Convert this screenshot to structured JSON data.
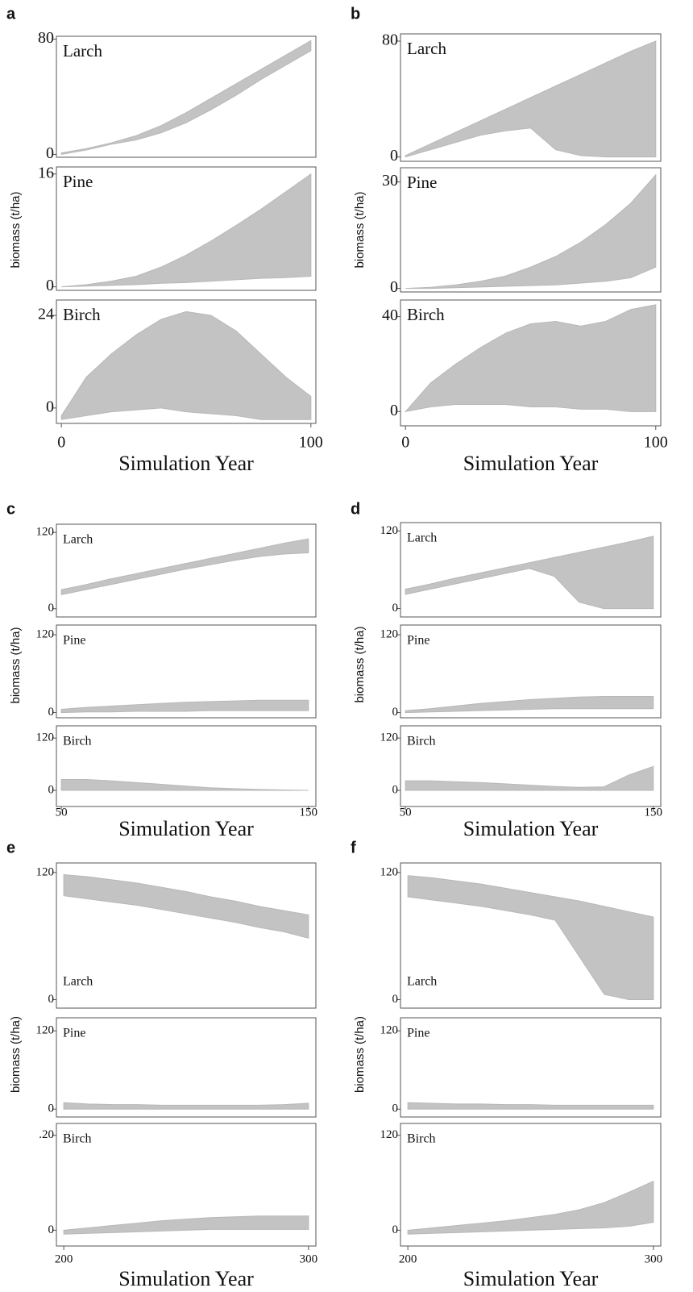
{
  "chart_data": [
    {
      "type": "band",
      "panel": "a",
      "x_label": "Simulation Year",
      "y_label": "biomass (t/ha)",
      "xlim": [
        -2,
        102
      ],
      "xticks": [
        0,
        100
      ],
      "x": [
        0,
        10,
        20,
        30,
        40,
        50,
        60,
        70,
        80,
        90,
        100
      ],
      "subplots": [
        {
          "name": "Larch",
          "ylim": [
            -2,
            82
          ],
          "yticks": [
            0,
            80
          ],
          "upper": [
            1,
            4,
            8,
            13,
            20,
            29,
            39,
            49,
            59,
            69,
            79
          ],
          "lower": [
            0,
            3,
            7,
            10,
            15,
            22,
            31,
            41,
            52,
            62,
            72
          ]
        },
        {
          "name": "Pine",
          "ylim": [
            -0.5,
            17
          ],
          "yticks": [
            0,
            16
          ],
          "upper": [
            0,
            0.3,
            0.8,
            1.5,
            2.8,
            4.5,
            6.5,
            8.7,
            11,
            13.5,
            16
          ],
          "lower": [
            0,
            0.1,
            0.2,
            0.3,
            0.5,
            0.6,
            0.8,
            1,
            1.2,
            1.3,
            1.5
          ]
        },
        {
          "name": "Birch",
          "ylim": [
            -4,
            28
          ],
          "yticks": [
            0,
            24
          ],
          "upper": [
            -2,
            8,
            14,
            19,
            23,
            25,
            24,
            20,
            14,
            8,
            3
          ],
          "lower": [
            -3,
            -2,
            -1,
            -0.5,
            0,
            -1,
            -1.5,
            -2,
            -3,
            -3,
            -3
          ]
        }
      ]
    },
    {
      "type": "band",
      "panel": "b",
      "x_label": "Simulation Year",
      "y_label": "biomass (t/ha)",
      "xlim": [
        -2,
        102
      ],
      "xticks": [
        0,
        100
      ],
      "x": [
        0,
        10,
        20,
        30,
        40,
        50,
        60,
        70,
        80,
        90,
        100
      ],
      "subplots": [
        {
          "name": "Larch",
          "ylim": [
            -3,
            85
          ],
          "yticks": [
            0,
            80
          ],
          "upper": [
            1,
            9,
            17,
            25,
            33,
            41,
            49,
            57,
            65,
            73,
            80
          ],
          "lower": [
            0,
            5,
            10,
            15,
            18,
            20,
            5,
            1,
            0,
            0,
            0
          ]
        },
        {
          "name": "Pine",
          "ylim": [
            -1,
            34
          ],
          "yticks": [
            0,
            30
          ],
          "upper": [
            0,
            0.3,
            1,
            2,
            3.5,
            6,
            9,
            13,
            18,
            24,
            32
          ],
          "lower": [
            0,
            0,
            0.2,
            0.4,
            0.6,
            0.8,
            1,
            1.5,
            2,
            3,
            6
          ]
        },
        {
          "name": "Birch",
          "ylim": [
            -6,
            47
          ],
          "yticks": [
            0,
            40
          ],
          "upper": [
            0,
            12,
            20,
            27,
            33,
            37,
            38,
            36,
            38,
            43,
            45
          ],
          "lower": [
            0,
            2,
            3,
            3,
            3,
            2,
            2,
            1,
            1,
            0,
            0
          ]
        }
      ]
    },
    {
      "type": "band",
      "panel": "c",
      "x_label": "Simulation Year",
      "y_label": "biomass (t/ha)",
      "xlim": [
        48,
        153
      ],
      "xticks": [
        50,
        150
      ],
      "x": [
        50,
        60,
        70,
        80,
        90,
        100,
        110,
        120,
        130,
        140,
        150
      ],
      "subplots": [
        {
          "name": "Larch",
          "ylim": [
            -13,
            133
          ],
          "yticks": [
            0,
            120
          ],
          "upper": [
            30,
            38,
            47,
            55,
            63,
            71,
            79,
            87,
            95,
            103,
            110
          ],
          "lower": [
            22,
            30,
            38,
            46,
            54,
            62,
            69,
            76,
            82,
            86,
            88
          ]
        },
        {
          "name": "Pine",
          "ylim": [
            -8,
            135
          ],
          "yticks": [
            0,
            120
          ],
          "upper": [
            5,
            8,
            10,
            12,
            14,
            16,
            17,
            18,
            19,
            19,
            19
          ],
          "lower": [
            0,
            1,
            1,
            2,
            2,
            2,
            3,
            3,
            3,
            3,
            3
          ]
        },
        {
          "name": "Birch",
          "ylim": [
            -37,
            148
          ],
          "yticks": [
            0,
            120
          ],
          "upper": [
            25,
            25,
            22,
            18,
            14,
            10,
            6,
            4,
            2,
            1,
            0
          ],
          "lower": [
            0,
            0,
            0,
            0,
            0,
            0,
            0,
            0,
            0,
            0,
            0
          ]
        }
      ]
    },
    {
      "type": "band",
      "panel": "d",
      "x_label": "Simulation Year",
      "y_label": "biomass (t/ha)",
      "xlim": [
        48,
        153
      ],
      "xticks": [
        50,
        150
      ],
      "x": [
        50,
        60,
        70,
        80,
        90,
        100,
        110,
        120,
        130,
        140,
        150
      ],
      "subplots": [
        {
          "name": "Larch",
          "ylim": [
            -13,
            133
          ],
          "yticks": [
            0,
            120
          ],
          "upper": [
            30,
            38,
            47,
            55,
            63,
            71,
            79,
            87,
            95,
            103,
            112
          ],
          "lower": [
            22,
            30,
            38,
            46,
            54,
            62,
            50,
            10,
            0,
            0,
            0
          ]
        },
        {
          "name": "Pine",
          "ylim": [
            -8,
            135
          ],
          "yticks": [
            0,
            120
          ],
          "upper": [
            3,
            6,
            10,
            14,
            17,
            20,
            22,
            24,
            25,
            25,
            25
          ],
          "lower": [
            0,
            1,
            2,
            3,
            4,
            5,
            6,
            6,
            6,
            6,
            6
          ]
        },
        {
          "name": "Birch",
          "ylim": [
            -37,
            148
          ],
          "yticks": [
            0,
            120
          ],
          "upper": [
            22,
            22,
            20,
            18,
            15,
            12,
            9,
            7,
            8,
            35,
            55
          ],
          "lower": [
            0,
            0,
            0,
            0,
            0,
            0,
            0,
            0,
            0,
            0,
            0
          ]
        }
      ]
    },
    {
      "type": "band",
      "panel": "e",
      "x_label": "Simulation Year",
      "y_label": "biomass (t/ha)",
      "xlim": [
        197,
        303
      ],
      "xticks": [
        200,
        300
      ],
      "x": [
        200,
        210,
        220,
        230,
        240,
        250,
        260,
        270,
        280,
        290,
        300
      ],
      "subplots": [
        {
          "name": "Larch",
          "ylim": [
            -8,
            129
          ],
          "yticks": [
            0,
            120
          ],
          "upper": [
            118,
            116,
            113,
            110,
            106,
            102,
            97,
            93,
            88,
            84,
            80
          ],
          "lower": [
            98,
            95,
            92,
            89,
            85,
            81,
            77,
            73,
            68,
            64,
            58
          ]
        },
        {
          "name": "Pine",
          "ylim": [
            -12,
            140
          ],
          "yticks": [
            0,
            120
          ],
          "upper": [
            10,
            8,
            7,
            7,
            6,
            6,
            6,
            6,
            6,
            7,
            9
          ],
          "lower": [
            0,
            0,
            0,
            0,
            0,
            0,
            0,
            0,
            0,
            0,
            0
          ]
        },
        {
          "name": "Birch",
          "ylim": [
            -20,
            135
          ],
          "yticks": [
            0,
            {
              "value": 120,
              "label": ".20"
            }
          ],
          "upper": [
            0,
            3,
            6,
            9,
            12,
            14,
            16,
            17,
            18,
            18,
            18
          ],
          "lower": [
            -5,
            -4,
            -3,
            -2,
            -1,
            0,
            1,
            1,
            1,
            1,
            1
          ]
        }
      ]
    },
    {
      "type": "band",
      "panel": "f",
      "x_label": "Simulation Year",
      "y_label": "biomass (t/ha)",
      "xlim": [
        197,
        303
      ],
      "xticks": [
        200,
        300
      ],
      "x": [
        200,
        210,
        220,
        230,
        240,
        250,
        260,
        270,
        280,
        290,
        300
      ],
      "subplots": [
        {
          "name": "Larch",
          "ylim": [
            -8,
            129
          ],
          "yticks": [
            0,
            120
          ],
          "upper": [
            117,
            115,
            112,
            109,
            105,
            101,
            97,
            93,
            88,
            83,
            78
          ],
          "lower": [
            97,
            94,
            91,
            88,
            84,
            80,
            75,
            40,
            5,
            0,
            0
          ]
        },
        {
          "name": "Pine",
          "ylim": [
            -12,
            140
          ],
          "yticks": [
            0,
            120
          ],
          "upper": [
            10,
            9,
            8,
            8,
            7,
            7,
            6,
            6,
            6,
            6,
            6
          ],
          "lower": [
            0,
            0,
            0,
            0,
            0,
            0,
            0,
            0,
            0,
            0,
            0
          ]
        },
        {
          "name": "Birch",
          "ylim": [
            -20,
            135
          ],
          "yticks": [
            0,
            120
          ],
          "upper": [
            0,
            3,
            6,
            9,
            12,
            16,
            20,
            26,
            35,
            48,
            62
          ],
          "lower": [
            -5,
            -4,
            -3,
            -2,
            -1,
            0,
            1,
            2,
            3,
            5,
            10
          ]
        }
      ]
    }
  ]
}
